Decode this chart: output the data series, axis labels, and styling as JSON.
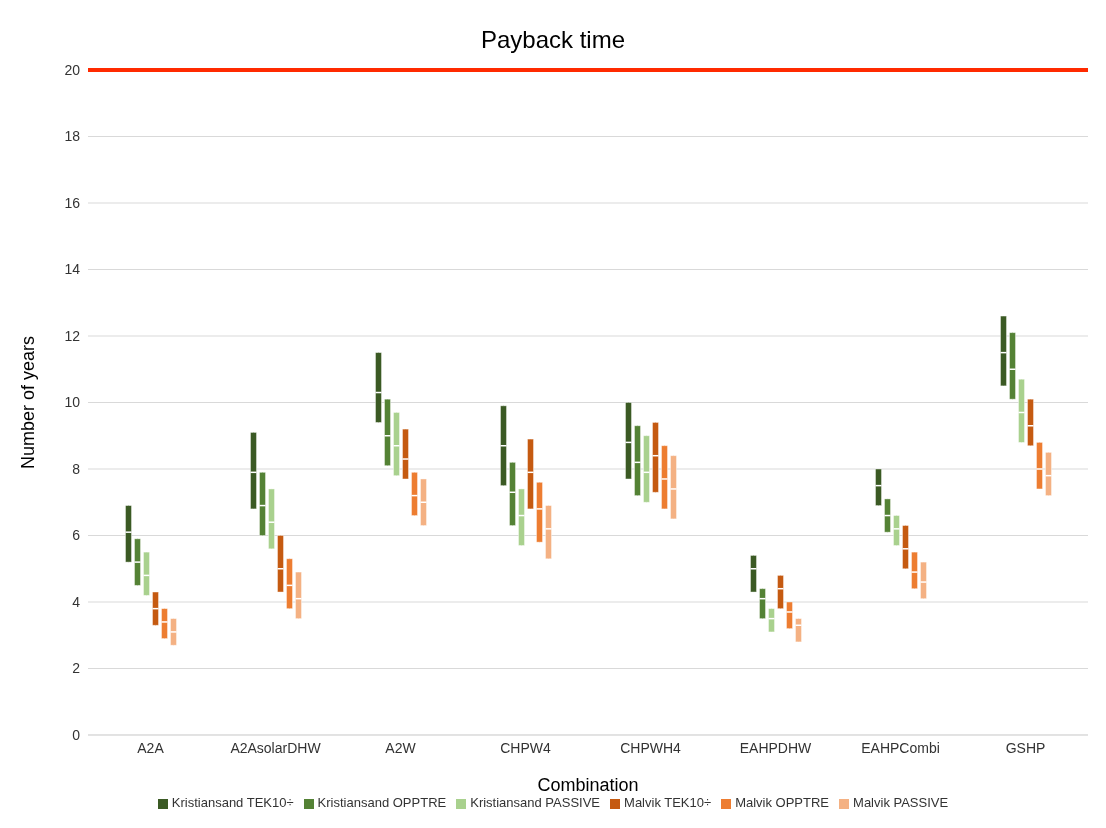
{
  "chart_data": {
    "type": "box",
    "title": "Payback time",
    "xlabel": "Combination",
    "ylabel": "Number of years",
    "categories": [
      "A2A",
      "A2AsolarDHW",
      "A2W",
      "CHPW4",
      "CHPWH4",
      "EAHPDHW",
      "EAHPCombi",
      "GSHP"
    ],
    "ylim": [
      0,
      20
    ],
    "yticks": [
      0,
      2,
      4,
      6,
      8,
      10,
      12,
      14,
      16,
      18,
      20
    ],
    "grid": "y",
    "legend": "bottom",
    "ref_lines": [
      {
        "axis": "y",
        "value": 20,
        "color": "#ff2a00"
      }
    ],
    "series": [
      {
        "name": "Kristiansand TEK10÷",
        "color": "#3b5a24",
        "boxes": [
          {
            "low": 5.2,
            "q1": 5.2,
            "median": 6.1,
            "q3": 6.9,
            "high": 6.9
          },
          {
            "low": 6.8,
            "q1": 6.8,
            "median": 7.9,
            "q3": 9.1,
            "high": 9.1
          },
          {
            "low": 9.4,
            "q1": 9.4,
            "median": 10.3,
            "q3": 11.5,
            "high": 11.5
          },
          {
            "low": 7.5,
            "q1": 7.5,
            "median": 8.7,
            "q3": 9.9,
            "high": 9.9
          },
          {
            "low": 7.7,
            "q1": 7.7,
            "median": 8.8,
            "q3": 10.0,
            "high": 10.0
          },
          {
            "low": 4.3,
            "q1": 4.3,
            "median": 5.0,
            "q3": 5.4,
            "high": 5.4
          },
          {
            "low": 6.9,
            "q1": 6.9,
            "median": 7.5,
            "q3": 8.0,
            "high": 8.0
          },
          {
            "low": 10.5,
            "q1": 10.5,
            "median": 11.5,
            "q3": 12.6,
            "high": 12.6
          }
        ]
      },
      {
        "name": "Kristiansand OPPTRE",
        "color": "#548235",
        "boxes": [
          {
            "low": 4.5,
            "q1": 4.5,
            "median": 5.2,
            "q3": 5.9,
            "high": 5.9
          },
          {
            "low": 6.0,
            "q1": 6.0,
            "median": 6.9,
            "q3": 7.9,
            "high": 7.9
          },
          {
            "low": 8.1,
            "q1": 8.1,
            "median": 9.0,
            "q3": 10.1,
            "high": 10.1
          },
          {
            "low": 6.3,
            "q1": 6.3,
            "median": 7.3,
            "q3": 8.2,
            "high": 8.2
          },
          {
            "low": 7.2,
            "q1": 7.2,
            "median": 8.2,
            "q3": 9.3,
            "high": 9.3
          },
          {
            "low": 3.5,
            "q1": 3.5,
            "median": 4.1,
            "q3": 4.4,
            "high": 4.4
          },
          {
            "low": 6.1,
            "q1": 6.1,
            "median": 6.6,
            "q3": 7.1,
            "high": 7.1
          },
          {
            "low": 10.1,
            "q1": 10.1,
            "median": 11.0,
            "q3": 12.1,
            "high": 12.1
          }
        ]
      },
      {
        "name": "Kristiansand PASSIVE",
        "color": "#a9d18e",
        "boxes": [
          {
            "low": 4.2,
            "q1": 4.2,
            "median": 4.8,
            "q3": 5.5,
            "high": 5.5
          },
          {
            "low": 5.6,
            "q1": 5.6,
            "median": 6.4,
            "q3": 7.4,
            "high": 7.4
          },
          {
            "low": 7.8,
            "q1": 7.8,
            "median": 8.7,
            "q3": 9.7,
            "high": 9.7
          },
          {
            "low": 5.7,
            "q1": 5.7,
            "median": 6.6,
            "q3": 7.4,
            "high": 7.4
          },
          {
            "low": 7.0,
            "q1": 7.0,
            "median": 7.9,
            "q3": 9.0,
            "high": 9.0
          },
          {
            "low": 3.1,
            "q1": 3.1,
            "median": 3.5,
            "q3": 3.8,
            "high": 3.8
          },
          {
            "low": 5.7,
            "q1": 5.7,
            "median": 6.2,
            "q3": 6.6,
            "high": 6.6
          },
          {
            "low": 8.8,
            "q1": 8.8,
            "median": 9.7,
            "q3": 10.7,
            "high": 10.7
          }
        ]
      },
      {
        "name": "Malvik TEK10÷",
        "color": "#c55a11",
        "boxes": [
          {
            "low": 3.3,
            "q1": 3.3,
            "median": 3.8,
            "q3": 4.3,
            "high": 4.3
          },
          {
            "low": 4.3,
            "q1": 4.3,
            "median": 5.0,
            "q3": 6.0,
            "high": 6.0
          },
          {
            "low": 7.7,
            "q1": 7.7,
            "median": 8.3,
            "q3": 9.2,
            "high": 9.2
          },
          {
            "low": 6.8,
            "q1": 6.8,
            "median": 7.9,
            "q3": 8.9,
            "high": 8.9
          },
          {
            "low": 7.3,
            "q1": 7.3,
            "median": 8.4,
            "q3": 9.4,
            "high": 9.4
          },
          {
            "low": 3.8,
            "q1": 3.8,
            "median": 4.4,
            "q3": 4.8,
            "high": 4.8
          },
          {
            "low": 5.0,
            "q1": 5.0,
            "median": 5.6,
            "q3": 6.3,
            "high": 6.3
          },
          {
            "low": 8.7,
            "q1": 8.7,
            "median": 9.3,
            "q3": 10.1,
            "high": 10.1
          }
        ]
      },
      {
        "name": "Malvik OPPTRE",
        "color": "#ed7d31",
        "boxes": [
          {
            "low": 2.9,
            "q1": 2.9,
            "median": 3.4,
            "q3": 3.8,
            "high": 3.8
          },
          {
            "low": 3.8,
            "q1": 3.8,
            "median": 4.5,
            "q3": 5.3,
            "high": 5.3
          },
          {
            "low": 6.6,
            "q1": 6.6,
            "median": 7.2,
            "q3": 7.9,
            "high": 7.9
          },
          {
            "low": 5.8,
            "q1": 5.8,
            "median": 6.8,
            "q3": 7.6,
            "high": 7.6
          },
          {
            "low": 6.8,
            "q1": 6.8,
            "median": 7.7,
            "q3": 8.7,
            "high": 8.7
          },
          {
            "low": 3.2,
            "q1": 3.2,
            "median": 3.7,
            "q3": 4.0,
            "high": 4.0
          },
          {
            "low": 4.4,
            "q1": 4.4,
            "median": 4.9,
            "q3": 5.5,
            "high": 5.5
          },
          {
            "low": 7.4,
            "q1": 7.4,
            "median": 8.0,
            "q3": 8.8,
            "high": 8.8
          }
        ]
      },
      {
        "name": "Malvik PASSIVE",
        "color": "#f4b183",
        "boxes": [
          {
            "low": 2.7,
            "q1": 2.7,
            "median": 3.1,
            "q3": 3.5,
            "high": 3.5
          },
          {
            "low": 3.5,
            "q1": 3.5,
            "median": 4.1,
            "q3": 4.9,
            "high": 4.9
          },
          {
            "low": 6.3,
            "q1": 6.3,
            "median": 7.0,
            "q3": 7.7,
            "high": 7.7
          },
          {
            "low": 5.3,
            "q1": 5.3,
            "median": 6.2,
            "q3": 6.9,
            "high": 6.9
          },
          {
            "low": 6.5,
            "q1": 6.5,
            "median": 7.4,
            "q3": 8.4,
            "high": 8.4
          },
          {
            "low": 2.8,
            "q1": 2.8,
            "median": 3.3,
            "q3": 3.5,
            "high": 3.5
          },
          {
            "low": 4.1,
            "q1": 4.1,
            "median": 4.6,
            "q3": 5.2,
            "high": 5.2
          },
          {
            "low": 7.2,
            "q1": 7.2,
            "median": 7.8,
            "q3": 8.5,
            "high": 8.5
          }
        ]
      }
    ]
  }
}
